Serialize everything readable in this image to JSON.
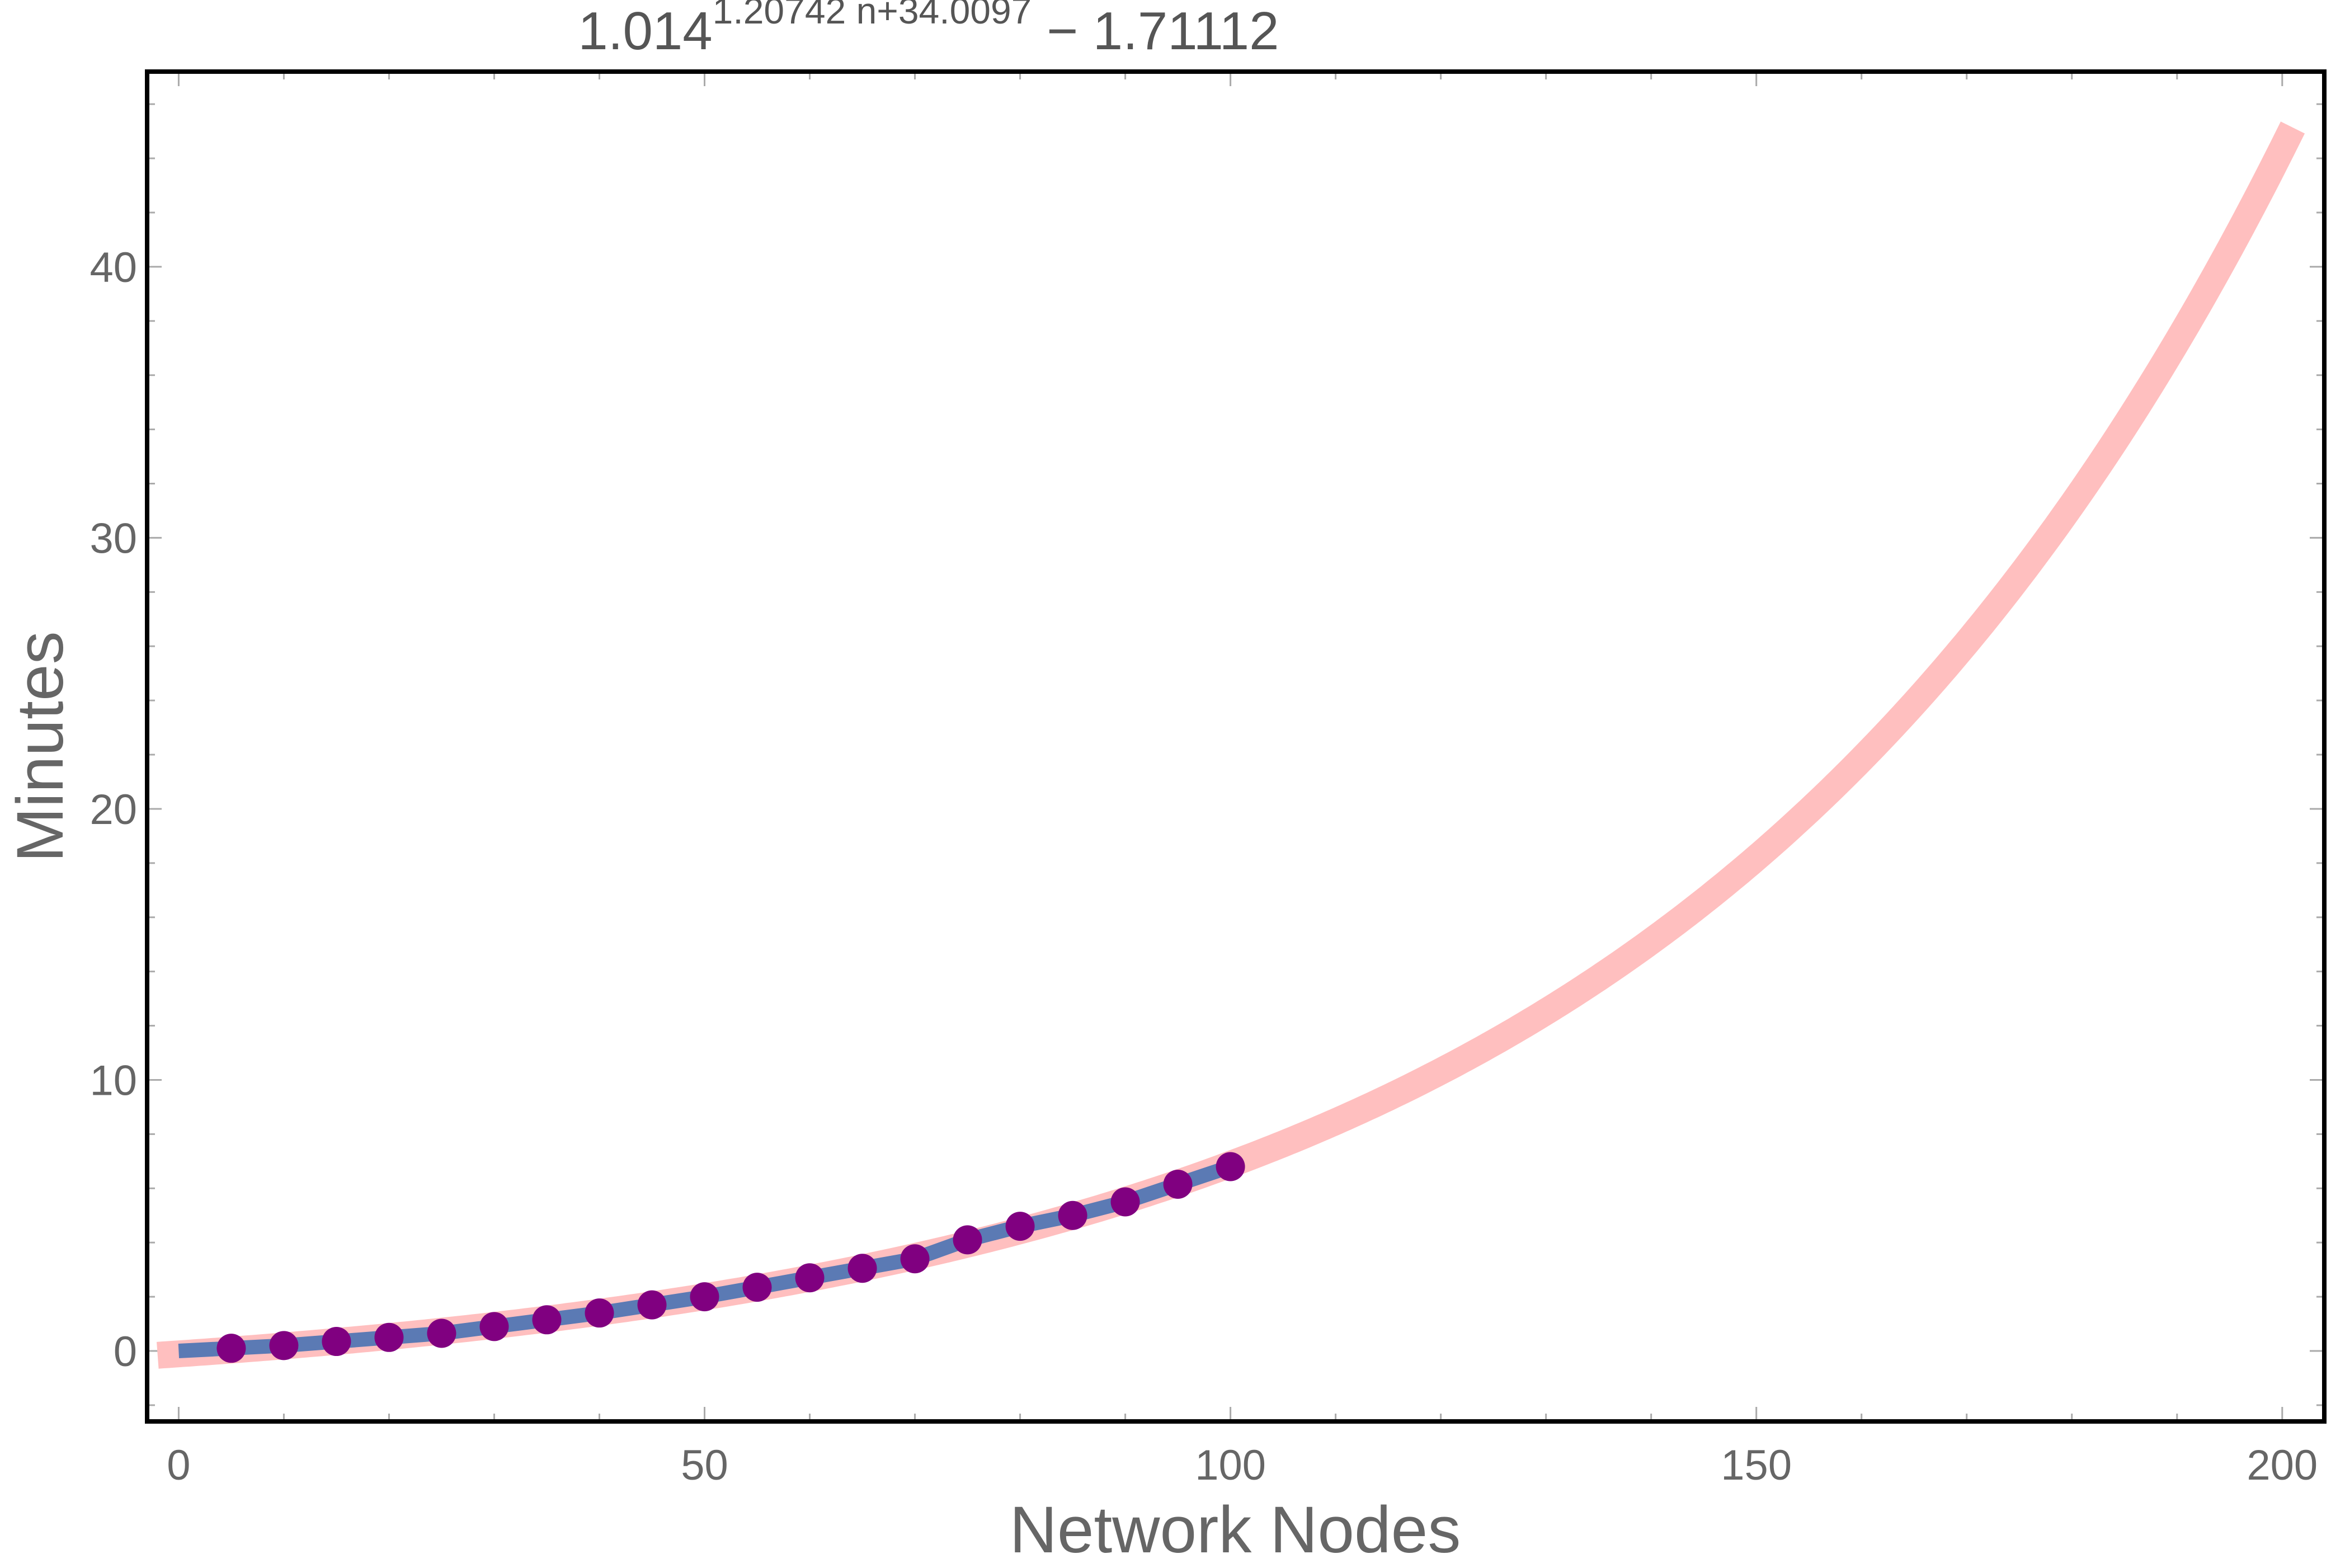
{
  "chart_data": {
    "type": "line",
    "title_parts": {
      "base": "1.014",
      "exponent": "1.20742 n+34.0097",
      "suffix": " − 1.71112"
    },
    "xlabel": "Network Nodes",
    "ylabel": "Minutes",
    "xlim": [
      -3,
      204
    ],
    "ylim": [
      -2.6,
      47.2
    ],
    "x_ticks": [
      0,
      50,
      100,
      150,
      200
    ],
    "y_ticks": [
      0,
      10,
      20,
      30,
      40
    ],
    "grid": false,
    "fit_curve": {
      "formula": "1.014^(1.20742 n + 34.0097) - 1.71112",
      "base": 1.014,
      "a": 1.20742,
      "b": 34.0097,
      "c": -1.71112,
      "x_range": [
        -2,
        201
      ],
      "color": "#ffbfbf"
    },
    "series": [
      {
        "color": "#5b7ab4",
        "marker_color": "#800080",
        "x": [
          0,
          5,
          10,
          15,
          20,
          25,
          30,
          35,
          40,
          45,
          50,
          55,
          60,
          65,
          70,
          75,
          80,
          85,
          90,
          95,
          100
        ],
        "y": [
          0.0,
          0.1,
          0.2,
          0.35,
          0.5,
          0.65,
          0.9,
          1.15,
          1.4,
          1.7,
          2.0,
          2.35,
          2.7,
          3.05,
          3.4,
          4.1,
          4.6,
          5.0,
          5.5,
          6.15,
          6.8
        ],
        "marker_from_index": 1
      }
    ]
  }
}
